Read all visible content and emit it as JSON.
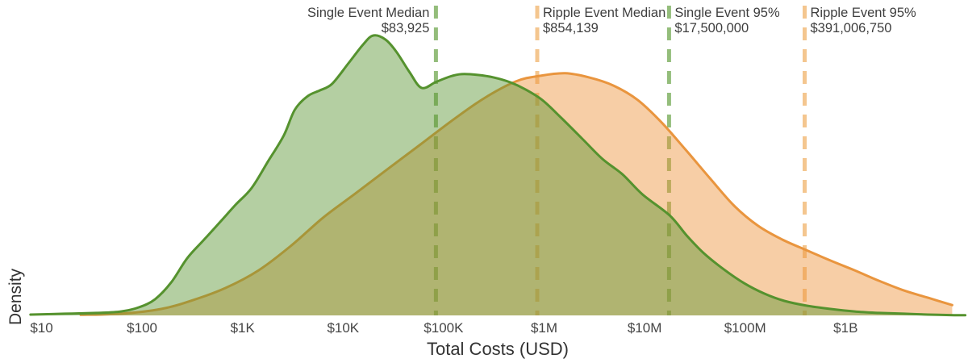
{
  "chart_data": {
    "type": "area",
    "subtype": "kde-density",
    "title": "",
    "xlabel": "Total Costs (USD)",
    "ylabel": "Density",
    "x_scale": "log10",
    "x_range_log10": [
      0.89,
      10.19
    ],
    "y_range_density": [
      0,
      1.05
    ],
    "grid": false,
    "legend_position": "none",
    "x_ticks": [
      {
        "label": "$10",
        "log10": 1
      },
      {
        "label": "$100",
        "log10": 2
      },
      {
        "label": "$1K",
        "log10": 3
      },
      {
        "label": "$10K",
        "log10": 4
      },
      {
        "label": "$100K",
        "log10": 5
      },
      {
        "label": "$1M",
        "log10": 6
      },
      {
        "label": "$10M",
        "log10": 7
      },
      {
        "label": "$100M",
        "log10": 8
      },
      {
        "label": "$1B",
        "log10": 9
      }
    ],
    "series": [
      {
        "name": "Ripple Event",
        "stroke": "#e9953e",
        "fill": "rgba(237,146,57,0.45)",
        "end_style": "vertical-cut",
        "points": [
          [
            1.39,
            0.002
          ],
          [
            1.79,
            0.006
          ],
          [
            2.19,
            0.023
          ],
          [
            2.51,
            0.055
          ],
          [
            2.83,
            0.098
          ],
          [
            3.16,
            0.161
          ],
          [
            3.48,
            0.248
          ],
          [
            3.8,
            0.349
          ],
          [
            4.12,
            0.435
          ],
          [
            4.44,
            0.522
          ],
          [
            4.76,
            0.608
          ],
          [
            5.08,
            0.695
          ],
          [
            5.4,
            0.775
          ],
          [
            5.72,
            0.836
          ],
          [
            5.96,
            0.856
          ],
          [
            6.21,
            0.865
          ],
          [
            6.45,
            0.85
          ],
          [
            6.69,
            0.821
          ],
          [
            6.93,
            0.77
          ],
          [
            7.17,
            0.689
          ],
          [
            7.41,
            0.591
          ],
          [
            7.65,
            0.49
          ],
          [
            7.89,
            0.392
          ],
          [
            8.13,
            0.32
          ],
          [
            8.37,
            0.271
          ],
          [
            8.61,
            0.233
          ],
          [
            8.85,
            0.196
          ],
          [
            9.09,
            0.161
          ],
          [
            9.33,
            0.124
          ],
          [
            9.58,
            0.089
          ],
          [
            9.82,
            0.063
          ],
          [
            10.06,
            0.037
          ]
        ]
      },
      {
        "name": "Single Event",
        "stroke": "#55922e",
        "fill": "rgba(88,148,48,0.45)",
        "end_style": "taper",
        "points": [
          [
            0.89,
            0.003
          ],
          [
            1.23,
            0.006
          ],
          [
            1.55,
            0.009
          ],
          [
            1.79,
            0.014
          ],
          [
            1.97,
            0.029
          ],
          [
            2.13,
            0.058
          ],
          [
            2.29,
            0.118
          ],
          [
            2.45,
            0.205
          ],
          [
            2.61,
            0.268
          ],
          [
            2.77,
            0.331
          ],
          [
            2.93,
            0.395
          ],
          [
            3.09,
            0.455
          ],
          [
            3.25,
            0.548
          ],
          [
            3.41,
            0.643
          ],
          [
            3.52,
            0.735
          ],
          [
            3.65,
            0.784
          ],
          [
            3.77,
            0.804
          ],
          [
            3.89,
            0.827
          ],
          [
            4.05,
            0.899
          ],
          [
            4.2,
            0.968
          ],
          [
            4.3,
            1.0
          ],
          [
            4.42,
            0.986
          ],
          [
            4.53,
            0.942
          ],
          [
            4.66,
            0.87
          ],
          [
            4.78,
            0.813
          ],
          [
            4.92,
            0.833
          ],
          [
            5.06,
            0.853
          ],
          [
            5.18,
            0.862
          ],
          [
            5.34,
            0.859
          ],
          [
            5.5,
            0.85
          ],
          [
            5.66,
            0.833
          ],
          [
            5.8,
            0.81
          ],
          [
            5.98,
            0.77
          ],
          [
            6.17,
            0.706
          ],
          [
            6.38,
            0.631
          ],
          [
            6.58,
            0.559
          ],
          [
            6.78,
            0.504
          ],
          [
            6.98,
            0.432
          ],
          [
            7.25,
            0.357
          ],
          [
            7.42,
            0.285
          ],
          [
            7.59,
            0.222
          ],
          [
            7.79,
            0.164
          ],
          [
            7.99,
            0.115
          ],
          [
            8.19,
            0.078
          ],
          [
            8.39,
            0.052
          ],
          [
            8.61,
            0.035
          ],
          [
            8.85,
            0.023
          ],
          [
            9.09,
            0.014
          ],
          [
            9.33,
            0.009
          ],
          [
            9.58,
            0.006
          ],
          [
            9.82,
            0.003
          ],
          [
            10.08,
            0.001
          ],
          [
            10.19,
            0.001
          ]
        ]
      }
    ],
    "annotations": [
      {
        "label": "Single Event Median",
        "value_label": "$83,925",
        "usd": 83925,
        "log10": 4.9239,
        "align": "right",
        "line_color": "#94bd7b"
      },
      {
        "label": "Ripple Event Median",
        "value_label": "$854,139",
        "usd": 854139,
        "log10": 5.9315,
        "align": "left",
        "line_color": "#f4c68f"
      },
      {
        "label": "Single Event 95%",
        "value_label": "$17,500,000",
        "usd": 17500000,
        "log10": 7.243,
        "align": "left",
        "line_color": "#94bd7b"
      },
      {
        "label": "Ripple Event 95%",
        "value_label": "$391,006,750",
        "usd": 391006750,
        "log10": 8.5922,
        "align": "left",
        "line_color": "#f4c68f"
      }
    ],
    "colors": {
      "single_event_stroke": "#55922e",
      "single_event_fill": "rgba(88,148,48,0.45)",
      "ripple_event_stroke": "#e9953e",
      "ripple_event_fill": "rgba(237,146,57,0.45)",
      "single_event_dash": "#94bd7b",
      "ripple_event_dash": "#f4c68f",
      "annotation_text": "#3e3e3e",
      "axis_text": "#454545",
      "background": "#ffffff"
    }
  }
}
